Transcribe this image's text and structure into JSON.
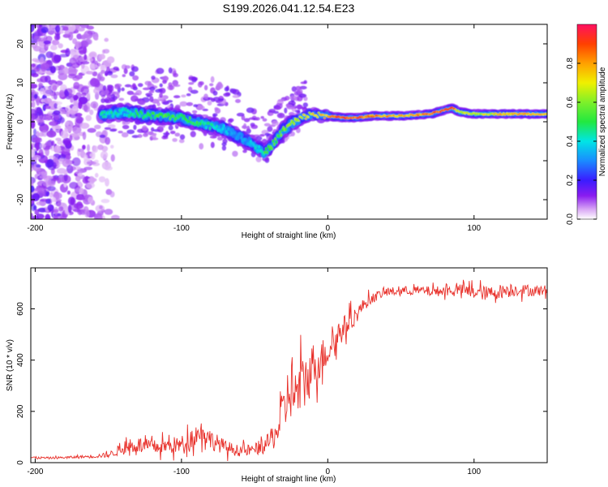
{
  "figure_title": "S199.2026.041.12.54.E23",
  "chart_data": [
    {
      "type": "heatmap",
      "title": "S199.2026.041.12.54.E23",
      "xlabel": "Height of straight line (km)",
      "ylabel": "Frequency (Hz)",
      "xlim": [
        -203,
        150
      ],
      "ylim": [
        -25,
        25
      ],
      "xticks": [
        -200,
        -100,
        0,
        100
      ],
      "yticks": [
        20,
        10,
        0,
        -10,
        -20
      ],
      "xtick_labels": [
        "-200",
        "-100",
        "0",
        "100"
      ],
      "ytick_labels": [
        "20",
        "10",
        "0",
        "-10",
        "-20"
      ],
      "colorbar": {
        "label": "Normalized spectral amplitude",
        "range": [
          0,
          1
        ],
        "ticks": [
          0.0,
          0.2,
          0.4,
          0.6,
          0.8
        ],
        "tick_labels": [
          "0.0",
          "0.2",
          "0.4",
          "0.6",
          "0.8"
        ]
      },
      "ridge_centerline": {
        "x": [
          -150,
          -140,
          -130,
          -120,
          -110,
          -100,
          -90,
          -80,
          -70,
          -60,
          -50,
          -44,
          -40,
          -35,
          -30,
          -25,
          -20,
          -15,
          -10,
          -5,
          0,
          10,
          20,
          30,
          50,
          70,
          80,
          85,
          90,
          100,
          110,
          120,
          130,
          150
        ],
        "y": [
          2,
          2.5,
          2,
          1.5,
          1.5,
          1,
          0,
          -1,
          -2,
          -4,
          -6,
          -8,
          -7,
          -4.5,
          -2,
          -0.5,
          0.5,
          1.5,
          2,
          1.5,
          1.5,
          1,
          1,
          1.5,
          1.5,
          2,
          3,
          3.5,
          2.5,
          2,
          2,
          2,
          2,
          2
        ],
        "amplitude": [
          0.45,
          0.42,
          0.5,
          0.52,
          0.55,
          0.5,
          0.52,
          0.45,
          0.38,
          0.32,
          0.4,
          0.5,
          0.55,
          0.55,
          0.6,
          0.65,
          0.7,
          0.72,
          0.75,
          0.75,
          0.8,
          0.95,
          0.9,
          0.85,
          0.8,
          0.85,
          0.95,
          0.95,
          0.7,
          0.7,
          0.7,
          0.8,
          0.8,
          0.75
        ]
      }
    },
    {
      "type": "line",
      "title": "",
      "xlabel": "Height of straight line (km)",
      "ylabel": "SNR (10 * v/v)",
      "xlim": [
        -203,
        150
      ],
      "ylim": [
        0,
        760
      ],
      "xticks": [
        -200,
        -100,
        0,
        100
      ],
      "yticks": [
        0,
        200,
        400,
        600
      ],
      "xtick_labels": [
        "-200",
        "-100",
        "0",
        "100"
      ],
      "ytick_labels": [
        "0",
        "200",
        "400",
        "600"
      ],
      "series": [
        {
          "name": "SNR",
          "color": "#e8302a",
          "x": [
            -203,
            -190,
            -180,
            -170,
            -160,
            -150,
            -140,
            -130,
            -120,
            -110,
            -100,
            -90,
            -85,
            -80,
            -70,
            -60,
            -50,
            -40,
            -35,
            -30,
            -25,
            -22,
            -20,
            -15,
            -10,
            -5,
            0,
            5,
            10,
            15,
            20,
            25,
            30,
            35,
            40,
            50,
            60,
            70,
            80,
            90,
            100,
            110,
            120,
            130,
            140,
            150
          ],
          "y": [
            20,
            18,
            20,
            22,
            25,
            30,
            55,
            70,
            60,
            65,
            70,
            110,
            125,
            90,
            60,
            45,
            50,
            80,
            120,
            200,
            310,
            250,
            290,
            320,
            380,
            400,
            440,
            480,
            520,
            550,
            580,
            620,
            640,
            655,
            665,
            670,
            672,
            668,
            670,
            675,
            665,
            660,
            670,
            675,
            670,
            672
          ],
          "noise_amplitude": [
            6,
            6,
            6,
            8,
            10,
            14,
            35,
            45,
            40,
            45,
            50,
            60,
            65,
            55,
            40,
            30,
            35,
            50,
            90,
            140,
            200,
            180,
            160,
            160,
            130,
            110,
            90,
            80,
            70,
            60,
            45,
            35,
            30,
            25,
            25,
            25,
            25,
            28,
            28,
            30,
            40,
            40,
            40,
            35,
            30,
            30
          ]
        }
      ]
    }
  ]
}
